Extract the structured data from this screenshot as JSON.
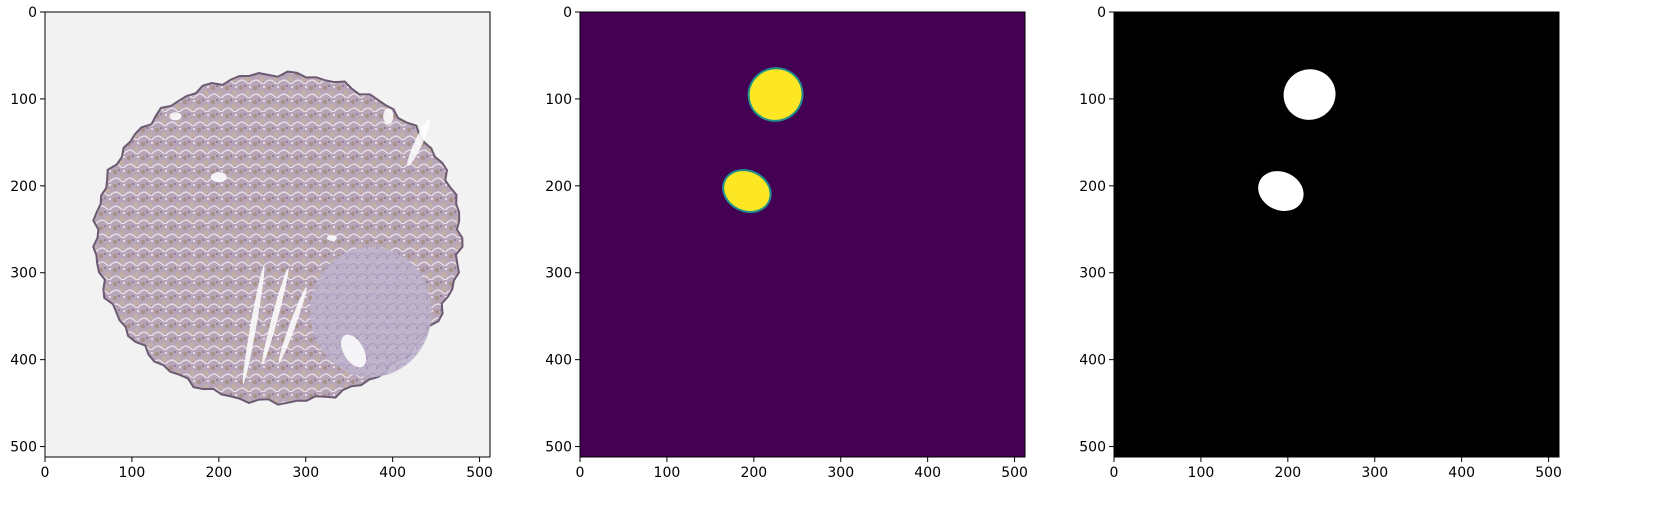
{
  "chart_data": [
    {
      "type": "heatmap",
      "content": "histology-tissue-image",
      "colormap": "rgb",
      "x_ticks": [
        0,
        100,
        200,
        300,
        400,
        500
      ],
      "y_ticks": [
        0,
        100,
        200,
        300,
        400,
        500
      ],
      "xlim": [
        0,
        512
      ],
      "ylim": [
        512,
        0
      ],
      "tissue_core": {
        "center": [
          268,
          260
        ],
        "radius": 210
      },
      "colors": {
        "background": "#f2f2f2",
        "tissue": "#b8a6b8",
        "stain": "#b49a82",
        "edge": "#6b5a72"
      }
    },
    {
      "type": "heatmap",
      "content": "predicted-probability-mask",
      "colormap": "viridis",
      "x_ticks": [
        0,
        100,
        200,
        300,
        400,
        500
      ],
      "y_ticks": [
        0,
        100,
        200,
        300,
        400,
        500
      ],
      "xlim": [
        0,
        512
      ],
      "ylim": [
        512,
        0
      ],
      "blobs": [
        {
          "center": [
            225,
            95
          ],
          "rx": 30,
          "ry": 29
        },
        {
          "center": [
            192,
            206
          ],
          "rx": 27,
          "ry": 22
        }
      ],
      "colors": {
        "background": "#440154",
        "blob": "#fde725",
        "edge": "#21908d"
      }
    },
    {
      "type": "heatmap",
      "content": "binary-mask",
      "colormap": "gray",
      "x_ticks": [
        0,
        100,
        200,
        300,
        400,
        500
      ],
      "y_ticks": [
        0,
        100,
        200,
        300,
        400,
        500
      ],
      "xlim": [
        0,
        512
      ],
      "ylim": [
        512,
        0
      ],
      "blobs": [
        {
          "center": [
            225,
            95
          ],
          "rx": 30,
          "ry": 29
        },
        {
          "center": [
            192,
            206
          ],
          "rx": 27,
          "ry": 22
        }
      ],
      "colors": {
        "background": "#000000",
        "blob": "#ffffff"
      }
    }
  ]
}
